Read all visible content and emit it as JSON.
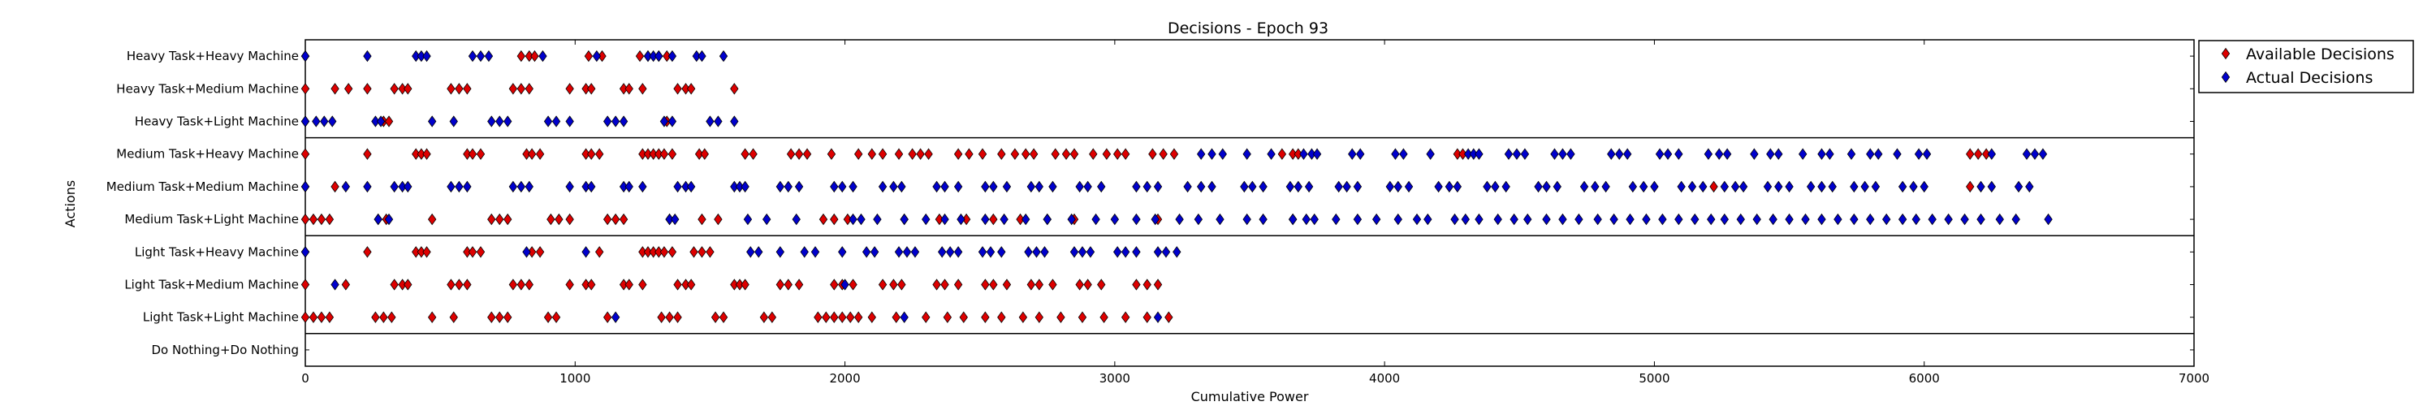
{
  "chart_data": {
    "type": "scatter",
    "title": "Decisions - Epoch 93",
    "xlabel": "Cumulative Power",
    "ylabel": "Actions",
    "xlim": [
      0,
      7000
    ],
    "xticks": [
      0,
      1000,
      2000,
      3000,
      4000,
      5000,
      6000,
      7000
    ],
    "categories": [
      "Heavy Task+Heavy Machine",
      "Heavy Task+Medium Machine",
      "Heavy Task+Light Machine",
      "Medium Task+Heavy Machine",
      "Medium Task+Medium Machine",
      "Medium Task+Light Machine",
      "Light Task+Heavy Machine",
      "Light Task+Medium Machine",
      "Light Task+Light Machine",
      "Do Nothing+Do Nothing"
    ],
    "group_separators_after": [
      "Heavy Task+Light Machine",
      "Medium Task+Light Machine",
      "Light Task+Light Machine"
    ],
    "legend_position": "outside-right-top",
    "grid": false,
    "series": [
      {
        "name": "Available Decisions",
        "color": "#dd0000",
        "marker": "diamond",
        "points": [
          {
            "category": "Heavy Task+Heavy Machine",
            "x": [
              0,
              800,
              830,
              850,
              1050,
              1100,
              1240,
              1270,
              1310,
              1340
            ]
          },
          {
            "category": "Heavy Task+Medium Machine",
            "x": [
              0,
              110,
              160,
              230,
              330,
              360,
              380,
              540,
              570,
              600,
              770,
              800,
              830,
              980,
              1040,
              1060,
              1180,
              1200,
              1250,
              1380,
              1410,
              1430,
              1590
            ]
          },
          {
            "category": "Heavy Task+Light Machine",
            "x": [
              0,
              290,
              310,
              1340
            ]
          },
          {
            "category": "Medium Task+Heavy Machine",
            "x": [
              0,
              230,
              410,
              430,
              450,
              600,
              620,
              650,
              820,
              840,
              870,
              1040,
              1060,
              1090,
              1250,
              1270,
              1290,
              1310,
              1330,
              1360,
              1460,
              1480,
              1630,
              1660,
              1800,
              1830,
              1860,
              1950,
              2050,
              2100,
              2140,
              2200,
              2250,
              2280,
              2310,
              2420,
              2460,
              2510,
              2580,
              2630,
              2670,
              2700,
              2780,
              2820,
              2850,
              2920,
              2970,
              3010,
              3040,
              3140,
              3180,
              3220,
              3620,
              3660,
              3680,
              4270,
              4290,
              6170,
              6200,
              6230
            ]
          },
          {
            "category": "Medium Task+Medium Machine",
            "x": [
              0,
              110,
              5220,
              6170
            ]
          },
          {
            "category": "Medium Task+Light Machine",
            "x": [
              0,
              30,
              60,
              90,
              270,
              300,
              470,
              690,
              720,
              750,
              910,
              940,
              980,
              1120,
              1150,
              1180,
              1350,
              1470,
              1530,
              1920,
              1960,
              2010,
              2220,
              2350,
              2450,
              2550,
              2650,
              2750,
              2850,
              3160,
              3660
            ]
          },
          {
            "category": "Light Task+Heavy Machine",
            "x": [
              0,
              230,
              410,
              430,
              450,
              600,
              620,
              650,
              840,
              870,
              1090,
              1250,
              1270,
              1290,
              1310,
              1330,
              1360,
              1440,
              1470,
              1500
            ]
          },
          {
            "category": "Light Task+Medium Machine",
            "x": [
              0,
              150,
              330,
              360,
              380,
              540,
              570,
              600,
              770,
              800,
              830,
              980,
              1040,
              1060,
              1180,
              1200,
              1250,
              1380,
              1410,
              1430,
              1590,
              1610,
              1630,
              1760,
              1790,
              1830,
              1960,
              1990,
              2030,
              2140,
              2180,
              2210,
              2340,
              2370,
              2420,
              2520,
              2550,
              2600,
              2690,
              2720,
              2770,
              2870,
              2900,
              2950,
              3080,
              3120,
              3160
            ]
          },
          {
            "category": "Light Task+Light Machine",
            "x": [
              0,
              30,
              60,
              90,
              260,
              290,
              320,
              470,
              550,
              690,
              720,
              750,
              900,
              930,
              1120,
              1320,
              1350,
              1380,
              1520,
              1550,
              1700,
              1730,
              1900,
              1930,
              1960,
              1990,
              2020,
              2050,
              2100,
              2190,
              2300,
              2380,
              2440,
              2520,
              2580,
              2660,
              2720,
              2800,
              2880,
              2960,
              3040,
              3120,
              3200
            ]
          }
        ]
      },
      {
        "name": "Actual Decisions",
        "color": "#0000cc",
        "marker": "diamond",
        "points": [
          {
            "category": "Heavy Task+Heavy Machine",
            "x": [
              0,
              230,
              410,
              430,
              450,
              620,
              650,
              680,
              880,
              1080,
              1270,
              1290,
              1310,
              1360,
              1450,
              1470,
              1550
            ]
          },
          {
            "category": "Heavy Task+Light Machine",
            "x": [
              0,
              40,
              70,
              100,
              260,
              280,
              470,
              550,
              690,
              720,
              750,
              900,
              930,
              980,
              1120,
              1150,
              1180,
              1330,
              1360,
              1500,
              1530,
              1590
            ]
          },
          {
            "category": "Medium Task+Heavy Machine",
            "x": [
              3320,
              3360,
              3400,
              3490,
              3580,
              3700,
              3730,
              3750,
              3880,
              3910,
              4040,
              4070,
              4170,
              4310,
              4330,
              4350,
              4460,
              4490,
              4520,
              4630,
              4660,
              4690,
              4840,
              4870,
              4900,
              5020,
              5050,
              5090,
              5200,
              5240,
              5270,
              5370,
              5430,
              5460,
              5550,
              5620,
              5650,
              5730,
              5800,
              5830,
              5900,
              5980,
              6010,
              6250,
              6380,
              6410,
              6440
            ]
          },
          {
            "category": "Medium Task+Medium Machine",
            "x": [
              0,
              150,
              230,
              330,
              360,
              380,
              540,
              570,
              600,
              770,
              800,
              830,
              980,
              1040,
              1060,
              1180,
              1200,
              1250,
              1380,
              1410,
              1430,
              1590,
              1610,
              1630,
              1760,
              1790,
              1830,
              1960,
              1990,
              2030,
              2140,
              2180,
              2210,
              2340,
              2370,
              2420,
              2520,
              2550,
              2600,
              2690,
              2720,
              2770,
              2870,
              2900,
              2950,
              3080,
              3120,
              3160,
              3270,
              3320,
              3360,
              3480,
              3510,
              3550,
              3650,
              3680,
              3720,
              3830,
              3860,
              3900,
              4020,
              4050,
              4090,
              4200,
              4240,
              4270,
              4380,
              4410,
              4450,
              4570,
              4600,
              4640,
              4740,
              4780,
              4820,
              4920,
              4960,
              5000,
              5100,
              5140,
              5180,
              5260,
              5300,
              5330,
              5420,
              5460,
              5500,
              5580,
              5620,
              5660,
              5740,
              5780,
              5820,
              5920,
              5960,
              6000,
              6210,
              6250,
              6350,
              6390
            ]
          },
          {
            "category": "Medium Task+Light Machine",
            "x": [
              270,
              310,
              1350,
              1370,
              1640,
              1710,
              1820,
              2030,
              2060,
              2120,
              2220,
              2300,
              2370,
              2430,
              2520,
              2590,
              2670,
              2750,
              2840,
              2930,
              3000,
              3080,
              3150,
              3240,
              3310,
              3390,
              3490,
              3550,
              3660,
              3710,
              3740,
              3820,
              3900,
              3970,
              4050,
              4120,
              4160,
              4260,
              4300,
              4350,
              4420,
              4480,
              4530,
              4600,
              4660,
              4720,
              4790,
              4850,
              4910,
              4970,
              5030,
              5090,
              5150,
              5210,
              5260,
              5320,
              5380,
              5440,
              5500,
              5560,
              5620,
              5680,
              5740,
              5800,
              5860,
              5920,
              5970,
              6030,
              6090,
              6150,
              6210,
              6280,
              6340,
              6460
            ]
          },
          {
            "category": "Light Task+Heavy Machine",
            "x": [
              0,
              820,
              1040,
              1650,
              1680,
              1760,
              1850,
              1890,
              1990,
              2080,
              2110,
              2200,
              2230,
              2260,
              2360,
              2390,
              2420,
              2510,
              2540,
              2580,
              2680,
              2710,
              2740,
              2850,
              2880,
              2910,
              3010,
              3040,
              3080,
              3160,
              3190,
              3230
            ]
          },
          {
            "category": "Light Task+Medium Machine",
            "x": [
              110,
              2000
            ]
          },
          {
            "category": "Light Task+Light Machine",
            "x": [
              1150,
              2220,
              3160
            ]
          }
        ]
      }
    ]
  }
}
